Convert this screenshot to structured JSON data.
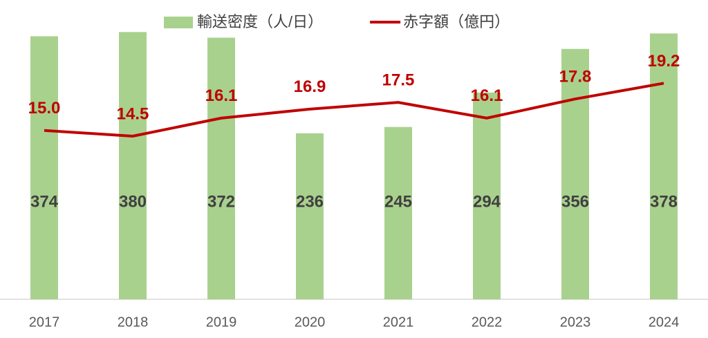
{
  "chart_data": {
    "type": "combo",
    "categories": [
      "2017",
      "2018",
      "2019",
      "2020",
      "2021",
      "2022",
      "2023",
      "2024"
    ],
    "series": [
      {
        "name": "輸送密度（人/日）",
        "type": "bar",
        "color": "#a9d18e",
        "values": [
          374,
          380,
          372,
          236,
          245,
          294,
          356,
          378
        ]
      },
      {
        "name": "赤字額（億円）",
        "type": "line",
        "axis": "y2",
        "color": "#c00000",
        "values": [
          15.0,
          14.5,
          16.1,
          16.9,
          17.5,
          16.1,
          17.8,
          19.2
        ],
        "value_labels": [
          "15.0",
          "14.5",
          "16.1",
          "16.9",
          "17.5",
          "16.1",
          "17.8",
          "19.2"
        ]
      }
    ],
    "ylim": [
      0,
      400
    ],
    "y2lim": [
      0,
      25
    ],
    "legend": "top"
  }
}
